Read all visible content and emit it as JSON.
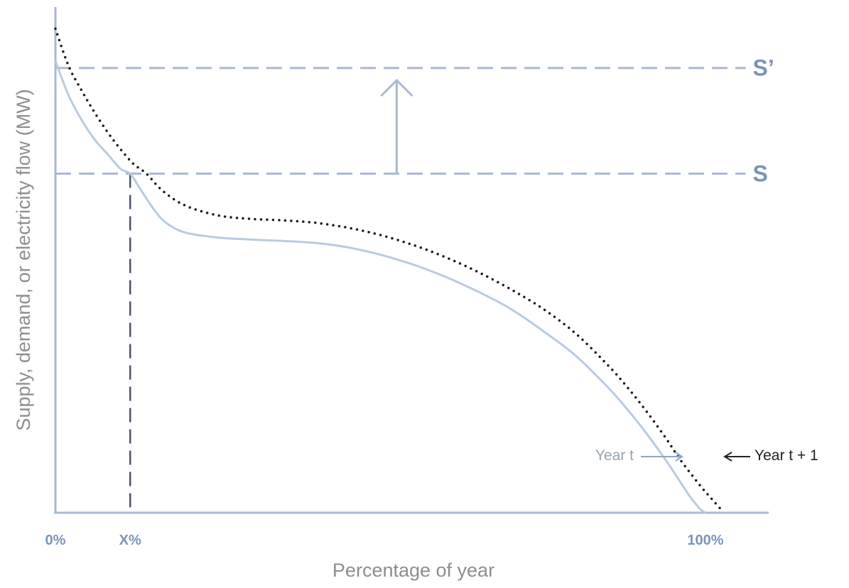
{
  "chart_data": {
    "type": "line",
    "xlabel": "Percentage of year",
    "ylabel": "Supply, demand, or electricity flow (MW)",
    "x_ticks": [
      {
        "label": "0%",
        "value": 0
      },
      {
        "label": "X%",
        "value": 11.5
      },
      {
        "label": "100%",
        "value": 100
      }
    ],
    "xlim": [
      0,
      110
    ],
    "ylim": [
      0,
      100
    ],
    "grid": false,
    "supply_levels": [
      {
        "label": "S",
        "value": 69
      },
      {
        "label": "S’",
        "value": 90.5
      }
    ],
    "shift_arrow": {
      "x": 52.5,
      "from": 69,
      "to": 88
    },
    "x_marker": {
      "x": 11.5,
      "y": 69
    },
    "series": [
      {
        "name": "Year t",
        "color": "#b9cbe0",
        "style": "solid",
        "x": [
          0,
          2,
          4,
          6,
          8,
          10,
          11.5,
          13,
          15,
          17,
          20,
          25,
          30,
          35,
          40,
          45,
          50,
          55,
          60,
          65,
          70,
          75,
          80,
          85,
          88,
          91,
          94,
          96,
          97.5,
          98.5,
          99.3,
          100
        ],
        "y": [
          92,
          85,
          80,
          76,
          73,
          70,
          69,
          66,
          62,
          59,
          57,
          56,
          55.6,
          55.3,
          54.9,
          54,
          52.5,
          50.5,
          48,
          45,
          41.5,
          37,
          32,
          25.5,
          21,
          16,
          10.5,
          6.5,
          3.5,
          1.8,
          0.6,
          0
        ]
      },
      {
        "name": "Year t + 1",
        "color": "#1a1a1a",
        "style": "dotted",
        "x": [
          0,
          2,
          4,
          6,
          8,
          10,
          12,
          14,
          16.5,
          20,
          25,
          30,
          35,
          40,
          45,
          50,
          55,
          60,
          65,
          70,
          75,
          80,
          85,
          88,
          91,
          94,
          96,
          98,
          99.5,
          100.5,
          101.5,
          102.5
        ],
        "y": [
          98.5,
          91,
          86,
          81.5,
          77.5,
          74,
          71,
          69,
          65.5,
          62.5,
          60.5,
          59.8,
          59.5,
          59,
          58,
          56.5,
          54.5,
          52,
          49,
          45.5,
          41.5,
          36.5,
          30,
          25.5,
          20.5,
          15,
          11,
          7.5,
          5,
          3.5,
          2,
          0.5
        ]
      }
    ],
    "curve_labels": [
      {
        "text": "Year t",
        "color": "#9aa3ad"
      },
      {
        "text": "Year t + 1",
        "color": "#222222"
      }
    ]
  }
}
